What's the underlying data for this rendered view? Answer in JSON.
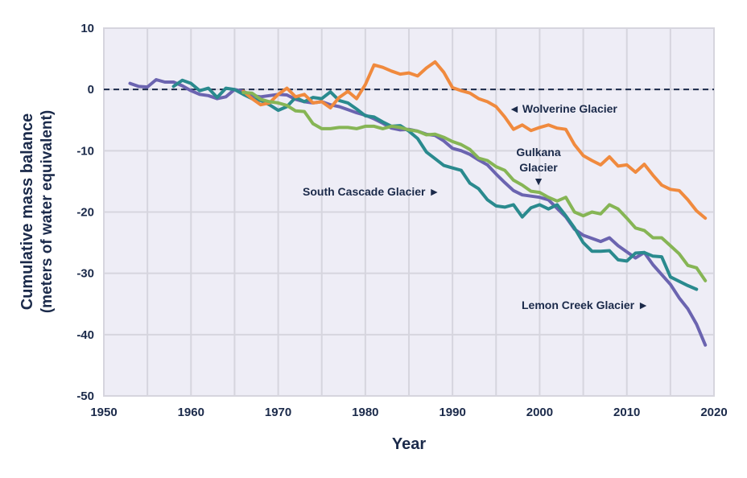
{
  "chart_data": {
    "type": "line",
    "title": "",
    "xlabel": "Year",
    "ylabel": "Cumulative mass balance",
    "ylabel_line2": "(meters of water equivalent)",
    "xlim": [
      1950,
      2020
    ],
    "ylim": [
      -50,
      10
    ],
    "xticks": [
      1950,
      1960,
      1970,
      1980,
      1990,
      2000,
      2010,
      2020
    ],
    "xtick_labels": [
      "1950",
      "1960",
      "1970",
      "1980",
      "1990",
      "2000",
      "2010",
      "2020"
    ],
    "yticks": [
      10,
      0,
      -10,
      -20,
      -30,
      -40,
      -50
    ],
    "ytick_labels": [
      "10",
      "0",
      "-10",
      "-20",
      "-30",
      "-40",
      "-50"
    ],
    "grid": true,
    "reference_line": 0,
    "series": [
      {
        "name": "Lemon Creek Glacier",
        "color": "#6b64b0",
        "x": [
          1953,
          1954,
          1955,
          1956,
          1957,
          1958,
          1959,
          1960,
          1961,
          1962,
          1963,
          1964,
          1965,
          1966,
          1967,
          1968,
          1969,
          1970,
          1971,
          1972,
          1973,
          1974,
          1975,
          1976,
          1977,
          1978,
          1979,
          1980,
          1981,
          1982,
          1983,
          1984,
          1985,
          1986,
          1987,
          1988,
          1989,
          1990,
          1991,
          1992,
          1993,
          1994,
          1995,
          1996,
          1997,
          1998,
          1999,
          2000,
          2001,
          2002,
          2003,
          2004,
          2005,
          2006,
          2007,
          2008,
          2009,
          2010,
          2011,
          2012,
          2013,
          2014,
          2015,
          2016,
          2017,
          2018,
          2019
        ],
        "values": [
          1.0,
          0.5,
          0.4,
          1.6,
          1.2,
          1.2,
          0.6,
          -0.2,
          -0.8,
          -1.0,
          -1.5,
          -1.2,
          0,
          -0.3,
          -1.0,
          -1.2,
          -1.0,
          -0.8,
          -0.9,
          -1.6,
          -2.0,
          -2.2,
          -2.0,
          -2.5,
          -2.8,
          -3.3,
          -3.8,
          -4.2,
          -4.8,
          -5.5,
          -6.3,
          -6.6,
          -6.5,
          -6.8,
          -7.3,
          -7.5,
          -8.4,
          -9.6,
          -10.0,
          -10.6,
          -11.5,
          -12.3,
          -13.8,
          -15.2,
          -16.5,
          -17.2,
          -17.4,
          -17.6,
          -18.0,
          -19.4,
          -20.8,
          -22.8,
          -23.8,
          -24.3,
          -24.8,
          -24.2,
          -25.5,
          -26.5,
          -27.5,
          -26.6,
          -28.6,
          -30.2,
          -31.8,
          -34.0,
          -35.8,
          -38.3,
          -41.7
        ]
      },
      {
        "name": "South Cascade Glacier",
        "color": "#2a8a8e",
        "x": [
          1958,
          1959,
          1960,
          1961,
          1962,
          1963,
          1964,
          1965,
          1966,
          1967,
          1968,
          1969,
          1970,
          1971,
          1972,
          1973,
          1974,
          1975,
          1976,
          1977,
          1978,
          1979,
          1980,
          1981,
          1982,
          1983,
          1984,
          1985,
          1986,
          1987,
          1988,
          1989,
          1990,
          1991,
          1992,
          1993,
          1994,
          1995,
          1996,
          1997,
          1998,
          1999,
          2000,
          2001,
          2002,
          2003,
          2004,
          2005,
          2006,
          2007,
          2008,
          2009,
          2010,
          2011,
          2012,
          2013,
          2014,
          2015,
          2016,
          2017,
          2018
        ],
        "values": [
          0.5,
          1.5,
          1.0,
          -0.2,
          0.2,
          -1.3,
          0.2,
          0,
          -0.8,
          -1.5,
          -1.8,
          -2.5,
          -3.4,
          -2.8,
          -1.3,
          -2.0,
          -1.3,
          -1.5,
          -0.4,
          -1.8,
          -2.2,
          -3.2,
          -4.3,
          -4.5,
          -5.3,
          -6.0,
          -5.9,
          -6.8,
          -8.0,
          -10.2,
          -11.3,
          -12.4,
          -12.8,
          -13.2,
          -15.3,
          -16.2,
          -18.0,
          -19.0,
          -19.2,
          -18.8,
          -20.8,
          -19.3,
          -18.8,
          -19.5,
          -18.8,
          -20.6,
          -22.6,
          -25.0,
          -26.4,
          -26.4,
          -26.3,
          -27.8,
          -28.0,
          -26.7,
          -26.6,
          -27.2,
          -27.3,
          -30.6,
          -31.3,
          -32.0,
          -32.6
        ]
      },
      {
        "name": "Wolverine Glacier",
        "color": "#f08a3e",
        "x": [
          1966,
          1967,
          1968,
          1969,
          1970,
          1971,
          1972,
          1973,
          1974,
          1975,
          1976,
          1977,
          1978,
          1979,
          1980,
          1981,
          1982,
          1983,
          1984,
          1985,
          1986,
          1987,
          1988,
          1989,
          1990,
          1991,
          1992,
          1993,
          1994,
          1995,
          1996,
          1997,
          1998,
          1999,
          2000,
          2001,
          2002,
          2003,
          2004,
          2005,
          2006,
          2007,
          2008,
          2009,
          2010,
          2011,
          2012,
          2013,
          2014,
          2015,
          2016,
          2017,
          2018,
          2019
        ],
        "values": [
          -0.3,
          -1.5,
          -2.5,
          -2.2,
          -0.8,
          0.2,
          -1.2,
          -0.8,
          -2.2,
          -2.0,
          -3.0,
          -1.3,
          -0.3,
          -1.5,
          0.8,
          4.0,
          3.6,
          3.0,
          2.5,
          2.7,
          2.2,
          3.5,
          4.5,
          2.8,
          0.3,
          -0.2,
          -0.6,
          -1.5,
          -2.0,
          -2.8,
          -4.5,
          -6.5,
          -5.8,
          -6.7,
          -6.2,
          -5.8,
          -6.3,
          -6.5,
          -9.0,
          -10.8,
          -11.6,
          -12.3,
          -11.0,
          -12.5,
          -12.3,
          -13.5,
          -12.2,
          -14.0,
          -15.6,
          -16.3,
          -16.5,
          -18.0,
          -19.8,
          -21.0
        ]
      },
      {
        "name": "Gulkana Glacier",
        "color": "#86b555",
        "x": [
          1966,
          1967,
          1968,
          1969,
          1970,
          1971,
          1972,
          1973,
          1974,
          1975,
          1976,
          1977,
          1978,
          1979,
          1980,
          1981,
          1982,
          1983,
          1984,
          1985,
          1986,
          1987,
          1988,
          1989,
          1990,
          1991,
          1992,
          1993,
          1994,
          1995,
          1996,
          1997,
          1998,
          1999,
          2000,
          2001,
          2002,
          2003,
          2004,
          2005,
          2006,
          2007,
          2008,
          2009,
          2010,
          2011,
          2012,
          2013,
          2014,
          2015,
          2016,
          2017,
          2018,
          2019
        ],
        "values": [
          -0.5,
          -0.6,
          -1.6,
          -2.0,
          -2.2,
          -2.6,
          -3.5,
          -3.6,
          -5.6,
          -6.4,
          -6.4,
          -6.2,
          -6.2,
          -6.4,
          -6.0,
          -6.0,
          -6.4,
          -6.0,
          -6.2,
          -6.6,
          -6.8,
          -7.4,
          -7.3,
          -7.8,
          -8.5,
          -9.0,
          -9.8,
          -11.2,
          -11.6,
          -12.6,
          -13.2,
          -14.8,
          -15.6,
          -16.6,
          -16.8,
          -17.6,
          -18.2,
          -17.6,
          -20.0,
          -20.6,
          -20.0,
          -20.3,
          -18.8,
          -19.5,
          -21.0,
          -22.6,
          -23.0,
          -24.2,
          -24.2,
          -25.5,
          -26.8,
          -28.7,
          -29.1,
          -31.2
        ]
      }
    ],
    "annotations": [
      {
        "text": "Wolverine Glacier",
        "arrow": "◄",
        "series": "Wolverine Glacier"
      },
      {
        "text": "Gulkana",
        "text2": "Glacier",
        "arrow": "▼",
        "series": "Gulkana Glacier"
      },
      {
        "text": "South Cascade Glacier",
        "arrow": "►",
        "series": "South Cascade Glacier"
      },
      {
        "text": "Lemon Creek Glacier",
        "arrow": "►",
        "series": "Lemon Creek Glacier"
      }
    ],
    "colors": {
      "plot_background": "#eeedf6",
      "grid": "#d6d5de",
      "text": "#1b2a4a",
      "reference_line": "#1b2a4a"
    }
  }
}
